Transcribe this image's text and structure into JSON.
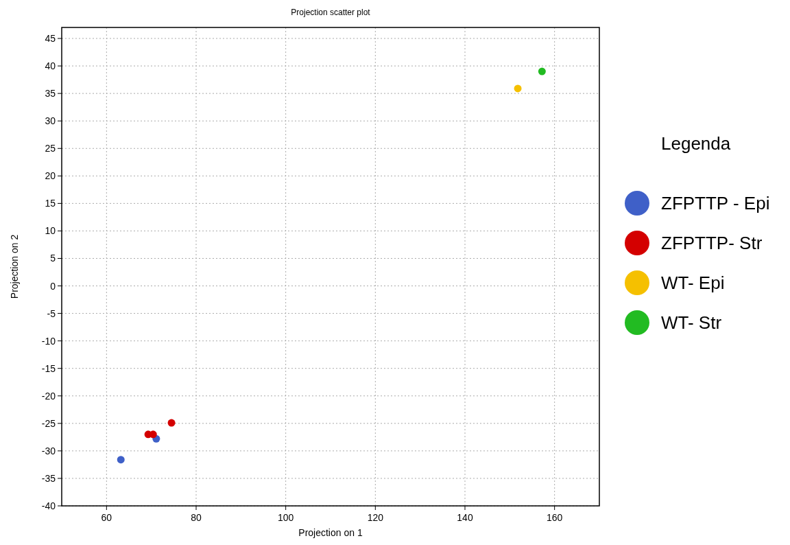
{
  "chart_data": {
    "type": "scatter",
    "title": "Projection scatter plot",
    "xlabel": "Projection on 1",
    "ylabel": "Projection on 2",
    "legend_title": "Legenda",
    "series": [
      {
        "name": "ZFPTTP - Epi",
        "color": "#3f60c8",
        "x": [
          63.2,
          71.1
        ],
        "values": [
          -31.6,
          -27.8
        ]
      },
      {
        "name": "ZFPTTP- Str",
        "color": "#d40000",
        "x": [
          69.3,
          70.4,
          74.5
        ],
        "values": [
          -27.0,
          -27.0,
          -24.9
        ]
      },
      {
        "name": "WT- Epi",
        "color": "#f5c000",
        "x": [
          151.8
        ],
        "values": [
          35.9
        ]
      },
      {
        "name": "WT- Str",
        "color": "#22bb22",
        "x": [
          157.2
        ],
        "values": [
          39.0
        ]
      }
    ],
    "xlim": [
      50,
      170
    ],
    "xticks": [
      60,
      80,
      100,
      120,
      140,
      160
    ],
    "ylim": [
      -40,
      47
    ],
    "yticks": [
      -40,
      -35,
      -30,
      -25,
      -20,
      -15,
      -10,
      -5,
      0,
      5,
      10,
      15,
      20,
      25,
      30,
      35,
      40,
      45
    ],
    "grid": true,
    "legend": "right",
    "marker": "circle"
  }
}
